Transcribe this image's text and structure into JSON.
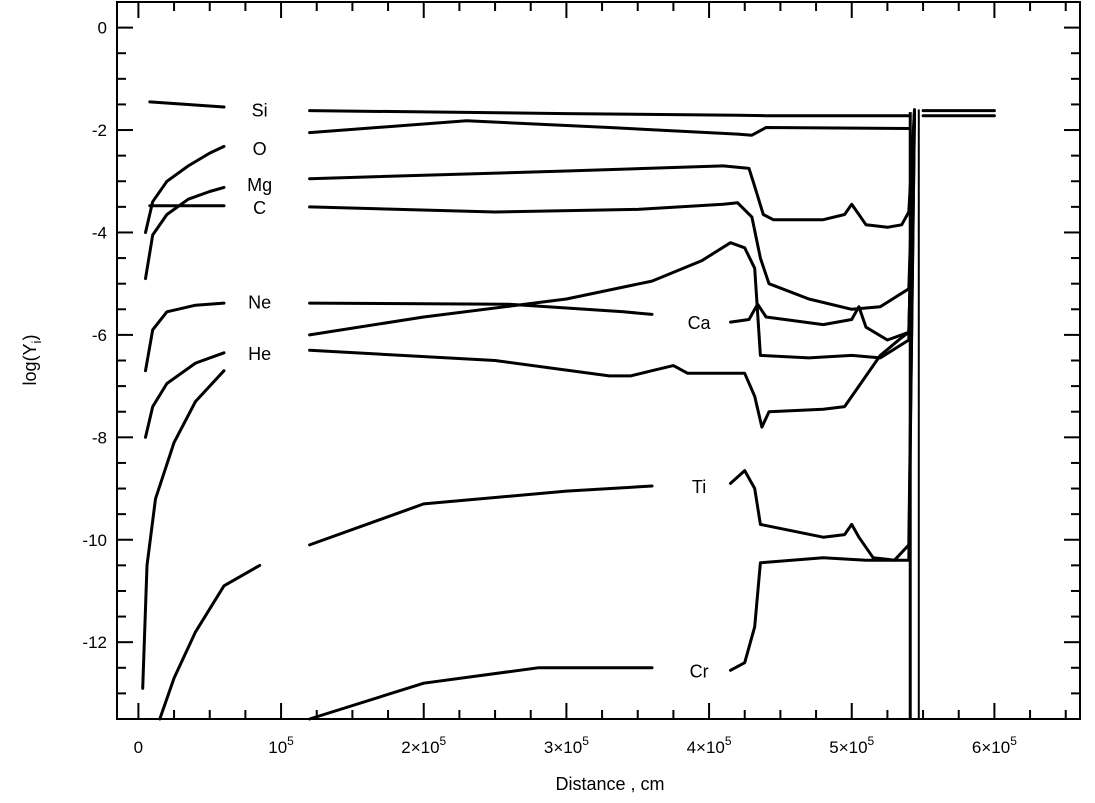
{
  "chart_data": {
    "type": "line",
    "title": "",
    "xlabel": "Distance , cm",
    "ylabel": "log(Yi)",
    "ylabel_main": "log(Y",
    "ylabel_sub": "i",
    "ylabel_close": ")",
    "xlim": [
      -15000,
      660000
    ],
    "ylim": [
      -13.5,
      0.5
    ],
    "x_ticks": [
      {
        "value": 0,
        "label": "0",
        "exp": ""
      },
      {
        "value": 100000,
        "label": "10",
        "exp": "5"
      },
      {
        "value": 200000,
        "label": "2×10",
        "exp": "5"
      },
      {
        "value": 300000,
        "label": "3×10",
        "exp": "5"
      },
      {
        "value": 400000,
        "label": "4×10",
        "exp": "5"
      },
      {
        "value": 500000,
        "label": "5×10",
        "exp": "5"
      },
      {
        "value": 600000,
        "label": "6×10",
        "exp": "5"
      }
    ],
    "y_ticks": [
      {
        "value": 0,
        "label": "0"
      },
      {
        "value": -2,
        "label": "-2"
      },
      {
        "value": -4,
        "label": "-4"
      },
      {
        "value": -6,
        "label": "-6"
      },
      {
        "value": -8,
        "label": "-8"
      },
      {
        "value": -10,
        "label": "-10"
      },
      {
        "value": -12,
        "label": "-12"
      }
    ],
    "grid": false,
    "legend": "none",
    "series": [
      {
        "name": "Si",
        "label_at": [
          85000,
          -1.6
        ],
        "segments": [
          [
            [
              8000,
              -1.45
            ],
            [
              60000,
              -1.55
            ]
          ],
          [
            [
              120000,
              -1.62
            ],
            [
              300000,
              -1.68
            ],
            [
              420000,
              -1.71
            ],
            [
              440000,
              -1.72
            ],
            [
              540000,
              -1.72
            ]
          ],
          [
            [
              550000,
              -1.72
            ],
            [
              600000,
              -1.72
            ]
          ]
        ]
      },
      {
        "name": "O",
        "label_at": [
          85000,
          -2.35
        ],
        "segments": [
          [
            [
              5000,
              -4.0
            ],
            [
              10000,
              -3.4
            ],
            [
              20000,
              -3.0
            ],
            [
              35000,
              -2.7
            ],
            [
              50000,
              -2.45
            ],
            [
              60000,
              -2.32
            ]
          ],
          [
            [
              120000,
              -2.05
            ],
            [
              230000,
              -1.82
            ],
            [
              330000,
              -1.95
            ],
            [
              420000,
              -2.08
            ],
            [
              430000,
              -2.1
            ],
            [
              440000,
              -1.95
            ],
            [
              540000,
              -1.97
            ]
          ],
          [
            [
              550000,
              -1.62
            ],
            [
              600000,
              -1.62
            ]
          ]
        ]
      },
      {
        "name": "Mg",
        "label_at": [
          85000,
          -3.05
        ],
        "segments": [
          [
            [
              5000,
              -4.9
            ],
            [
              10000,
              -4.05
            ],
            [
              20000,
              -3.65
            ],
            [
              35000,
              -3.35
            ],
            [
              50000,
              -3.2
            ],
            [
              60000,
              -3.12
            ]
          ],
          [
            [
              120000,
              -2.95
            ],
            [
              300000,
              -2.8
            ],
            [
              410000,
              -2.7
            ],
            [
              428000,
              -2.75
            ],
            [
              432000,
              -3.1
            ],
            [
              438000,
              -3.65
            ],
            [
              445000,
              -3.75
            ],
            [
              480000,
              -3.75
            ],
            [
              495000,
              -3.65
            ],
            [
              500000,
              -3.45
            ],
            [
              505000,
              -3.65
            ],
            [
              510000,
              -3.85
            ],
            [
              525000,
              -3.9
            ],
            [
              535000,
              -3.85
            ],
            [
              540000,
              -3.6
            ],
            [
              544000,
              -1.6
            ]
          ]
        ]
      },
      {
        "name": "C",
        "label_at": [
          85000,
          -3.5
        ],
        "segments": [
          [
            [
              8000,
              -3.48
            ],
            [
              60000,
              -3.48
            ]
          ],
          [
            [
              120000,
              -3.5
            ],
            [
              250000,
              -3.6
            ],
            [
              350000,
              -3.55
            ],
            [
              410000,
              -3.45
            ],
            [
              420000,
              -3.42
            ],
            [
              430000,
              -3.7
            ],
            [
              436000,
              -4.5
            ],
            [
              442000,
              -5.0
            ],
            [
              470000,
              -5.3
            ],
            [
              500000,
              -5.5
            ],
            [
              520000,
              -5.45
            ],
            [
              540000,
              -5.1
            ],
            [
              544000,
              -1.7
            ]
          ]
        ]
      },
      {
        "name": "Ne",
        "label_at": [
          85000,
          -5.35
        ],
        "segments": [
          [
            [
              5000,
              -6.7
            ],
            [
              10000,
              -5.9
            ],
            [
              20000,
              -5.55
            ],
            [
              40000,
              -5.42
            ],
            [
              60000,
              -5.38
            ]
          ],
          [
            [
              120000,
              -5.38
            ],
            [
              260000,
              -5.4
            ],
            [
              340000,
              -5.55
            ],
            [
              360000,
              -5.6
            ]
          ]
        ]
      },
      {
        "name": "Ca",
        "label_at": [
          393000,
          -5.75
        ],
        "segments": [
          [
            [
              120000,
              -6.0
            ],
            [
              200000,
              -5.65
            ],
            [
              300000,
              -5.3
            ],
            [
              360000,
              -4.95
            ],
            [
              395000,
              -4.55
            ],
            [
              415000,
              -4.2
            ],
            [
              425000,
              -4.3
            ],
            [
              432000,
              -4.7
            ],
            [
              436000,
              -6.4
            ],
            [
              470000,
              -6.45
            ],
            [
              500000,
              -6.4
            ],
            [
              520000,
              -6.45
            ],
            [
              540000,
              -6.1
            ],
            [
              544000,
              -1.65
            ]
          ],
          [
            [
              415000,
              -5.75
            ],
            [
              428000,
              -5.7
            ],
            [
              434000,
              -5.4
            ],
            [
              440000,
              -5.65
            ],
            [
              480000,
              -5.8
            ],
            [
              500000,
              -5.7
            ],
            [
              505000,
              -5.45
            ],
            [
              510000,
              -5.85
            ],
            [
              525000,
              -6.1
            ],
            [
              540000,
              -5.95
            ],
            [
              544000,
              -1.65
            ]
          ]
        ]
      },
      {
        "name": "He",
        "label_at": [
          85000,
          -6.35
        ],
        "segments": [
          [
            [
              5000,
              -8.0
            ],
            [
              10000,
              -7.4
            ],
            [
              20000,
              -6.95
            ],
            [
              40000,
              -6.55
            ],
            [
              60000,
              -6.35
            ]
          ],
          [
            [
              120000,
              -6.3
            ],
            [
              250000,
              -6.5
            ],
            [
              330000,
              -6.8
            ],
            [
              345000,
              -6.8
            ],
            [
              360000,
              -6.7
            ],
            [
              375000,
              -6.6
            ],
            [
              385000,
              -6.75
            ],
            [
              425000,
              -6.75
            ],
            [
              432000,
              -7.2
            ],
            [
              437000,
              -7.8
            ],
            [
              442000,
              -7.5
            ],
            [
              480000,
              -7.45
            ],
            [
              495000,
              -7.4
            ],
            [
              505000,
              -7.0
            ],
            [
              520000,
              -6.4
            ],
            [
              535000,
              -6.05
            ],
            [
              540000,
              -5.95
            ],
            [
              544000,
              -1.65
            ]
          ]
        ]
      },
      {
        "name": "Ti",
        "label_at": [
          393000,
          -8.95
        ],
        "segments": [
          [
            [
              3000,
              -12.9
            ],
            [
              6000,
              -10.5
            ],
            [
              12000,
              -9.2
            ],
            [
              25000,
              -8.1
            ],
            [
              40000,
              -7.3
            ],
            [
              60000,
              -6.7
            ]
          ],
          [
            [
              120000,
              -10.1
            ],
            [
              200000,
              -9.3
            ],
            [
              300000,
              -9.05
            ],
            [
              360000,
              -8.95
            ]
          ],
          [
            [
              415000,
              -8.9
            ],
            [
              425000,
              -8.65
            ],
            [
              432000,
              -9.0
            ],
            [
              436000,
              -9.7
            ],
            [
              480000,
              -9.95
            ],
            [
              495000,
              -9.9
            ],
            [
              500000,
              -9.7
            ],
            [
              505000,
              -9.95
            ],
            [
              515000,
              -10.35
            ],
            [
              530000,
              -10.4
            ],
            [
              540000,
              -10.1
            ],
            [
              544000,
              -1.65
            ]
          ]
        ]
      },
      {
        "name": "Cr",
        "label_at": [
          393000,
          -12.55
        ],
        "segments": [
          [
            [
              15000,
              -13.5
            ],
            [
              25000,
              -12.7
            ],
            [
              40000,
              -11.8
            ],
            [
              60000,
              -10.9
            ],
            [
              85000,
              -10.5
            ]
          ],
          [
            [
              120000,
              -13.5
            ],
            [
              200000,
              -12.8
            ],
            [
              280000,
              -12.5
            ],
            [
              360000,
              -12.5
            ]
          ],
          [
            [
              415000,
              -12.55
            ],
            [
              425000,
              -12.4
            ],
            [
              432000,
              -11.7
            ],
            [
              436000,
              -10.45
            ],
            [
              480000,
              -10.35
            ],
            [
              510000,
              -10.4
            ],
            [
              540000,
              -10.4
            ],
            [
              544000,
              -1.65
            ]
          ]
        ]
      }
    ]
  }
}
